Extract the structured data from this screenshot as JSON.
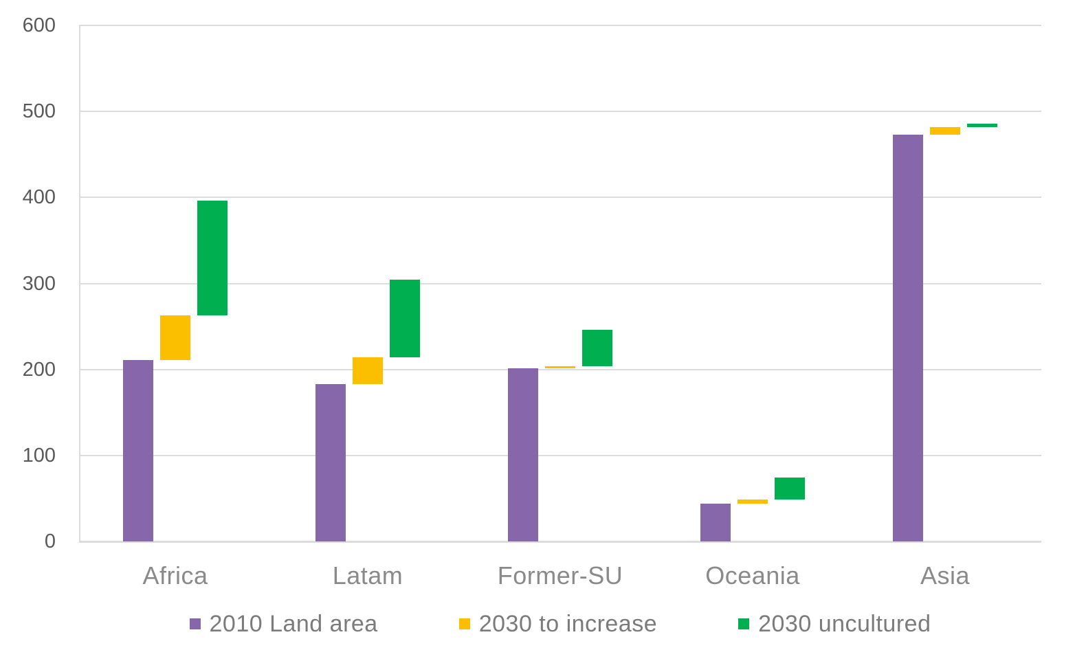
{
  "chart": {
    "y_axis": {
      "tick_labels": [
        "0",
        "100",
        "200",
        "300",
        "400",
        "500",
        "600"
      ]
    },
    "x_axis": {
      "category_labels": [
        "Africa",
        "Latam",
        "Former-SU",
        "Oceania",
        "Asia"
      ]
    },
    "legend": {
      "items": [
        {
          "label": "2010 Land area",
          "color": "#8667A9"
        },
        {
          "label": "2030 to increase",
          "color": "#FBBF00"
        },
        {
          "label": "2030 uncultured",
          "color": "#00AF50"
        }
      ]
    },
    "colors": {
      "background": "#FFFFFF",
      "gridline": "#DCDCDC",
      "axis_line": "#DCDCDC",
      "y_tick_text": "#595959",
      "x_label_text": "#8A8A8A",
      "legend_text": "#7B7B7B"
    }
  },
  "chart_data": {
    "type": "bar",
    "subtype": "waterfall-floating-columns",
    "title": "",
    "xlabel": "",
    "ylabel": "",
    "ylim": [
      0,
      600
    ],
    "yticks": [
      0,
      100,
      200,
      300,
      400,
      500,
      600
    ],
    "grid": true,
    "legend_position": "bottom",
    "categories": [
      "Africa",
      "Latam",
      "Former-SU",
      "Oceania",
      "Asia"
    ],
    "series": [
      {
        "name": "2010 Land area",
        "color": "#8667A9",
        "segments": [
          [
            0,
            211
          ],
          [
            0,
            183
          ],
          [
            0,
            201
          ],
          [
            0,
            44
          ],
          [
            0,
            473
          ]
        ]
      },
      {
        "name": "2030 to increase",
        "color": "#FBBF00",
        "segments": [
          [
            211,
            263
          ],
          [
            183,
            214
          ],
          [
            201,
            204
          ],
          [
            44,
            49
          ],
          [
            473,
            482
          ]
        ]
      },
      {
        "name": "2030 uncultured",
        "color": "#00AF50",
        "segments": [
          [
            263,
            396
          ],
          [
            214,
            304
          ],
          [
            204,
            246
          ],
          [
            49,
            74
          ],
          [
            482,
            486
          ]
        ]
      }
    ]
  }
}
